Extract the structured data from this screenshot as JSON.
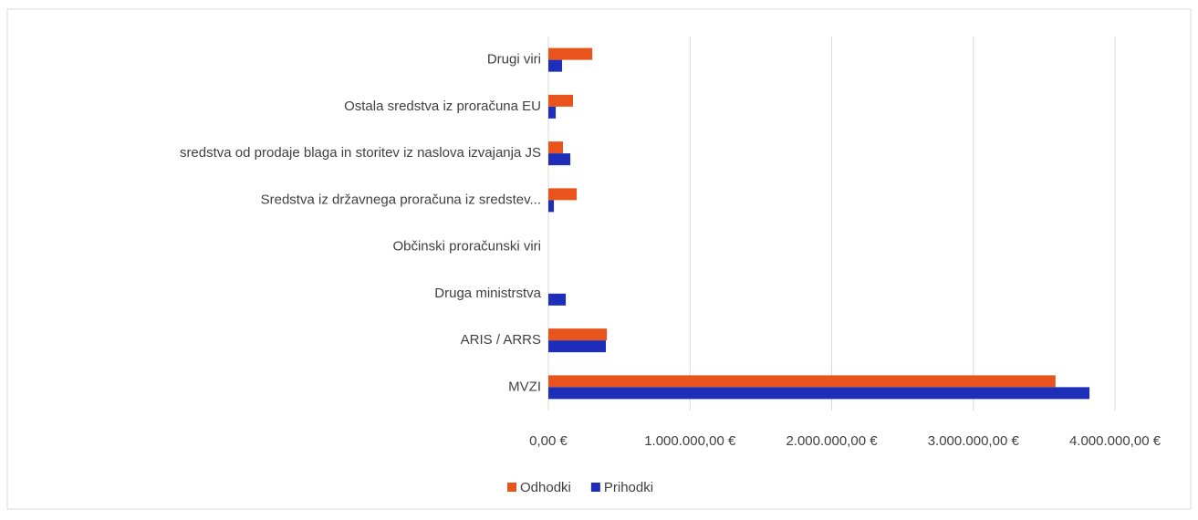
{
  "chart_data": {
    "type": "hbar",
    "categories": [
      "Drugi viri",
      "Ostala sredstva iz proračuna EU",
      "sredstva od prodaje blaga in storitev iz naslova izvajanja JS",
      "Sredstva iz državnega proračuna iz sredstev...",
      "Občinski proračunski viri",
      "Druga ministrstva",
      "ARIS / ARRS",
      "MVZI"
    ],
    "series": [
      {
        "name": "Odhodki",
        "color": "#e8541c",
        "values": [
          310000,
          174000,
          103000,
          200000,
          0,
          0,
          413000,
          3580000
        ]
      },
      {
        "name": "Prihodki",
        "color": "#1f2eb8",
        "values": [
          97000,
          52000,
          155000,
          39000,
          0,
          123000,
          406000,
          3820000
        ]
      }
    ],
    "xlim": [
      0,
      4000000
    ],
    "xticks": [
      {
        "value": 0,
        "label": "0,00 €"
      },
      {
        "value": 1000000,
        "label": "1.000.000,00 €"
      },
      {
        "value": 2000000,
        "label": "2.000.000,00 €"
      },
      {
        "value": 3000000,
        "label": "3.000.000,00 €"
      },
      {
        "value": 4000000,
        "label": "4.000.000,00 €"
      }
    ],
    "grid": true,
    "legend": "bottom"
  }
}
